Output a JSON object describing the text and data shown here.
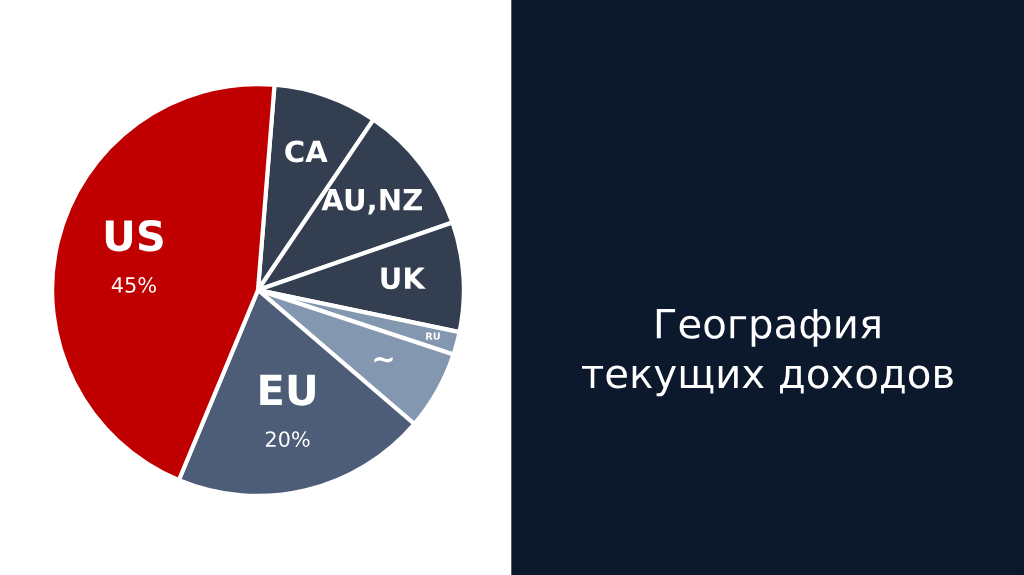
{
  "chart_data": {
    "type": "pie",
    "title": "География текущих доходов",
    "categories": [
      "CA",
      "AU,NZ",
      "UK",
      "RU",
      "~",
      "EU",
      "US"
    ],
    "values": [
      8.2,
      10.2,
      8.6,
      1.8,
      6.2,
      20,
      45
    ],
    "value_labels": [
      null,
      null,
      null,
      null,
      null,
      "20%",
      "45%"
    ],
    "colors": [
      "#333f50",
      "#333f50",
      "#333f50",
      "#8497b0",
      "#8497b0",
      "#4d5d78",
      "#c00000"
    ],
    "legend": false
  }
}
